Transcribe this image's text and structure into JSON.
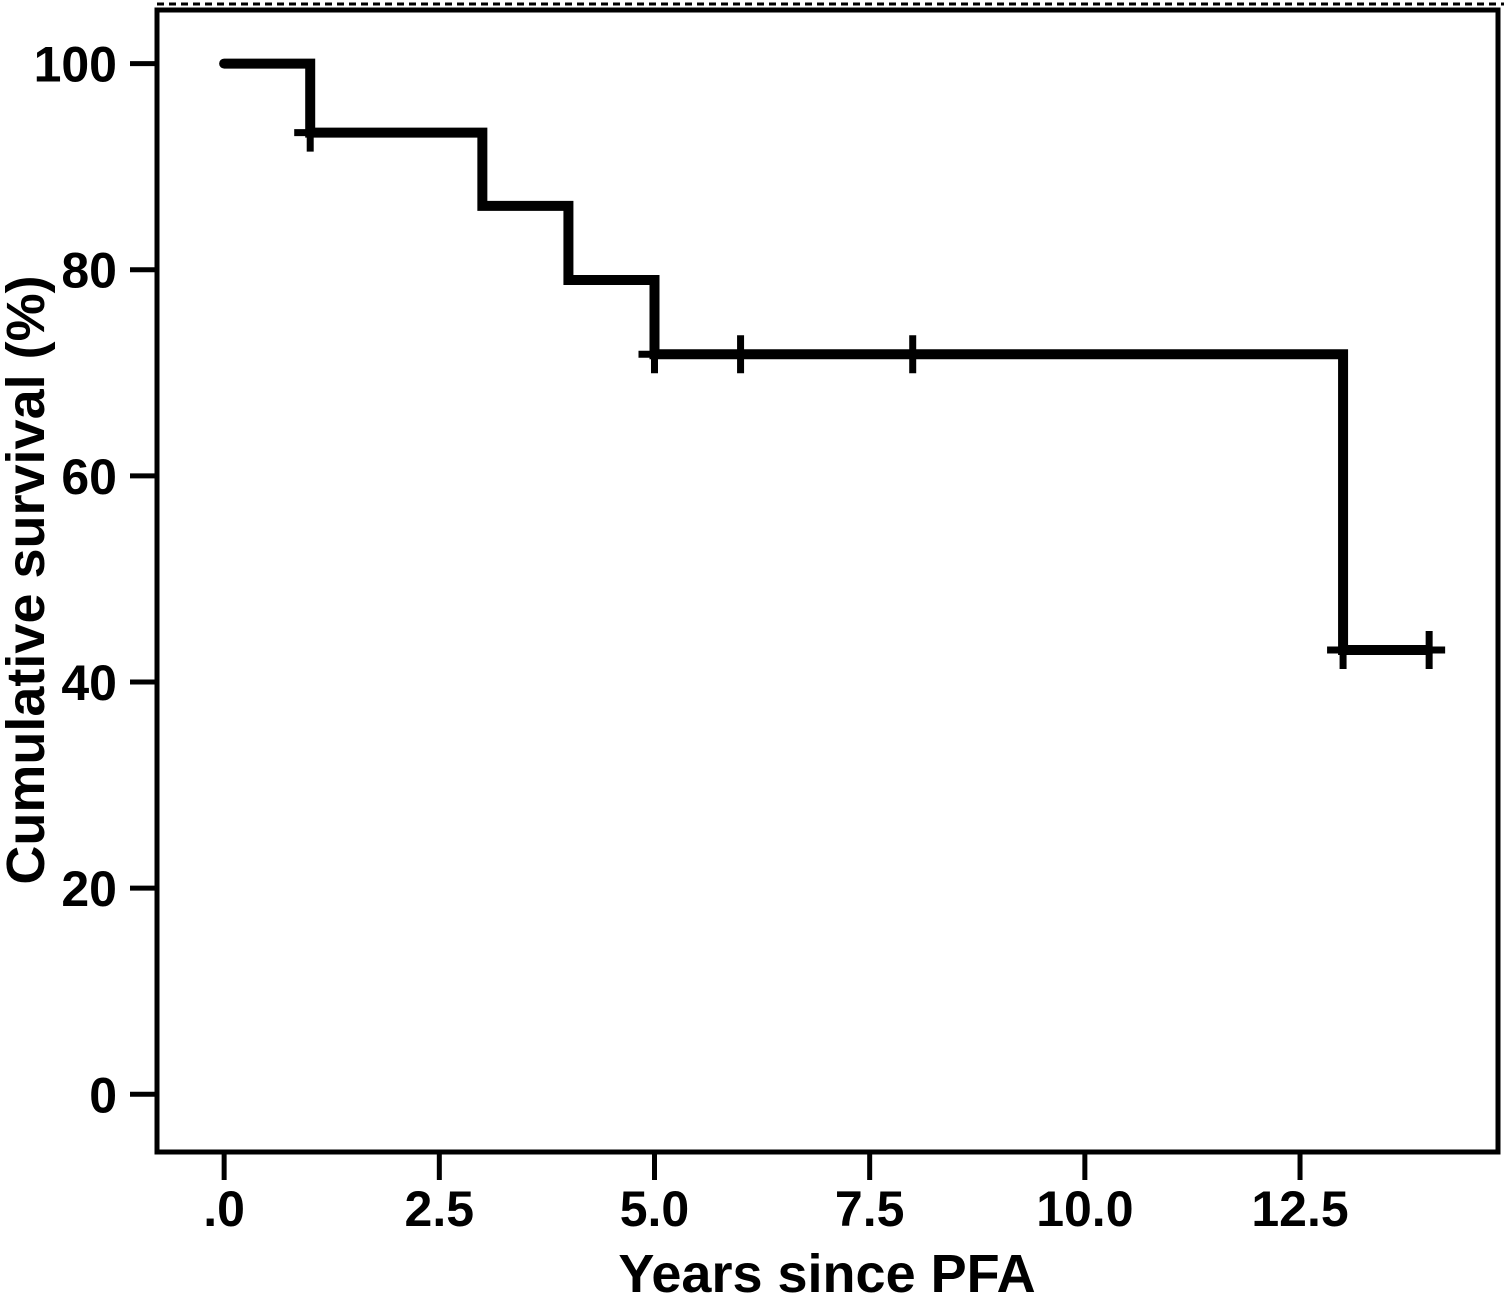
{
  "figure": {
    "background_color": "#ffffff",
    "foreground_color": "#000000",
    "description": "Kaplan-Meier cumulative survival step curve with censoring tick marks"
  },
  "chart_data": {
    "type": "line",
    "subtype": "kaplan_meier_step",
    "title": "",
    "xlabel": "Years since PFA",
    "ylabel": "Cumulative survival (%)",
    "grid": false,
    "legend": null,
    "curve_color": "#000000",
    "background_color": "#ffffff",
    "xlim": [
      -0.78,
      14.8
    ],
    "ylim": [
      -5.6,
      105.2
    ],
    "x_ticks": [
      {
        "value": 0,
        "label": ".0"
      },
      {
        "value": 2.5,
        "label": "2.5"
      },
      {
        "value": 5,
        "label": "5.0"
      },
      {
        "value": 7.5,
        "label": "7.5"
      },
      {
        "value": 10,
        "label": "10.0"
      },
      {
        "value": 12.5,
        "label": "12.5"
      }
    ],
    "y_ticks": [
      {
        "value": 0,
        "label": "0"
      },
      {
        "value": 20,
        "label": "20"
      },
      {
        "value": 40,
        "label": "40"
      },
      {
        "value": 60,
        "label": "60"
      },
      {
        "value": 80,
        "label": "80"
      },
      {
        "value": 100,
        "label": "100"
      }
    ],
    "series": [
      {
        "name": "Cumulative survival (%)",
        "steps": [
          {
            "time": 0,
            "survival": 100
          },
          {
            "time": 1,
            "survival": 93.3
          },
          {
            "time": 3,
            "survival": 86.2
          },
          {
            "time": 4,
            "survival": 79.0
          },
          {
            "time": 5,
            "survival": 71.8
          },
          {
            "time": 13,
            "survival": 43.1
          }
        ],
        "end_time": 14,
        "censor_marks": [
          {
            "time": 1,
            "survival": 93.3
          },
          {
            "time": 5,
            "survival": 71.8
          },
          {
            "time": 6,
            "survival": 71.8
          },
          {
            "time": 8,
            "survival": 71.8
          },
          {
            "time": 13,
            "survival": 43.1
          },
          {
            "time": 14,
            "survival": 43.1
          }
        ]
      }
    ]
  }
}
